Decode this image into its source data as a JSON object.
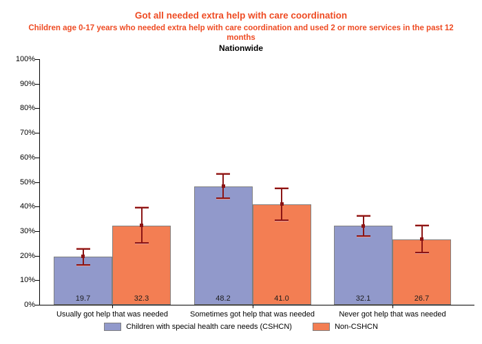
{
  "title": "Got all needed extra help with care coordination",
  "subtitle": "Children age 0-17 years who needed extra help with care coordination and used 2 or more services in the past 12 months",
  "region_label": "Nationwide",
  "colors": {
    "title_text": "#EE4B23",
    "cshcn_bar": "#9199CB",
    "non_cshcn_bar": "#F37E53",
    "bar_border": "#7F7F7F",
    "error_bar_dark": "#8B1414",
    "error_bar_light": "#E29B96",
    "axis": "#000000",
    "label_text": "#000000"
  },
  "chart_data": {
    "type": "bar",
    "categories": [
      "Usually got help that was needed",
      "Sometimes got help that was needed",
      "Never got help that was needed"
    ],
    "series": [
      {
        "name": "Children with special health care needs (CSHCN)",
        "color_key": "cshcn_bar",
        "values": [
          19.7,
          48.2,
          32.1
        ],
        "ci_low": [
          16.1,
          43.0,
          27.7
        ],
        "ci_high": [
          23.0,
          53.4,
          36.5
        ]
      },
      {
        "name": "Non-CSHCN",
        "color_key": "non_cshcn_bar",
        "values": [
          32.3,
          41.0,
          26.7
        ],
        "ci_low": [
          24.9,
          34.1,
          21.0
        ],
        "ci_high": [
          39.7,
          47.7,
          32.6
        ]
      }
    ],
    "value_labels": true,
    "error_bars": true,
    "grid": false,
    "ylim": [
      0,
      100
    ],
    "ytick_step": 10,
    "ytick_suffix": "%",
    "legend_position": "bottom"
  },
  "legend": {
    "items": [
      {
        "label": "Children with special health care needs (CSHCN)",
        "color_key": "cshcn_bar"
      },
      {
        "label": "Non-CSHCN",
        "color_key": "non_cshcn_bar"
      }
    ]
  }
}
